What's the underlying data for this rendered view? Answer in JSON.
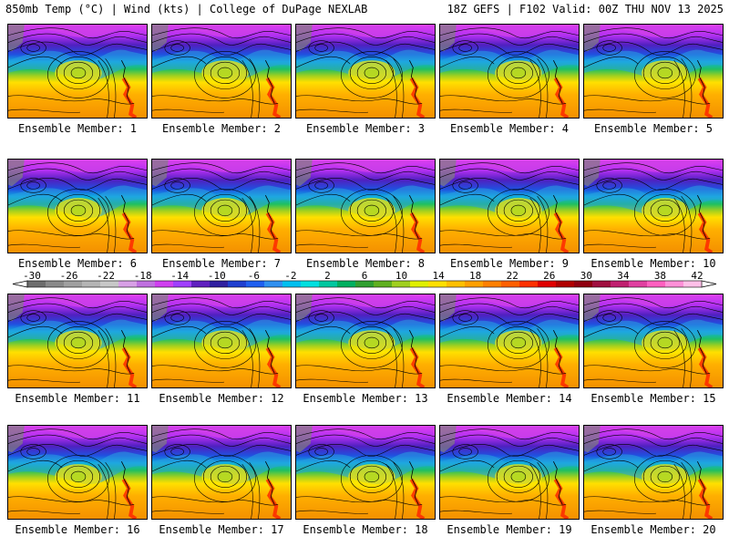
{
  "header": {
    "left_title": "850mb Temp (°C) | Wind (kts) | College of DuPage NEXLAB",
    "right_title": "18Z GEFS | F102 Valid: 00Z THU NOV 13 2025"
  },
  "members": [
    {
      "label": "Ensemble Member: 1"
    },
    {
      "label": "Ensemble Member: 2"
    },
    {
      "label": "Ensemble Member: 3"
    },
    {
      "label": "Ensemble Member: 4"
    },
    {
      "label": "Ensemble Member: 5"
    },
    {
      "label": "Ensemble Member: 6"
    },
    {
      "label": "Ensemble Member: 7"
    },
    {
      "label": "Ensemble Member: 8"
    },
    {
      "label": "Ensemble Member: 9"
    },
    {
      "label": "Ensemble Member: 10"
    },
    {
      "label": "Ensemble Member: 11"
    },
    {
      "label": "Ensemble Member: 12"
    },
    {
      "label": "Ensemble Member: 13"
    },
    {
      "label": "Ensemble Member: 14"
    },
    {
      "label": "Ensemble Member: 15"
    },
    {
      "label": "Ensemble Member: 16"
    },
    {
      "label": "Ensemble Member: 17"
    },
    {
      "label": "Ensemble Member: 18"
    },
    {
      "label": "Ensemble Member: 19"
    },
    {
      "label": "Ensemble Member: 20"
    }
  ],
  "colorbar": {
    "tick_labels": [
      "-30",
      "-26",
      "-22",
      "-18",
      "-14",
      "-10",
      "-6",
      "-2",
      "2",
      "6",
      "10",
      "14",
      "18",
      "22",
      "26",
      "30",
      "34",
      "38",
      "42"
    ],
    "colors": [
      "#6e6e6e",
      "#8a8a8a",
      "#a0a0a0",
      "#b4b4b4",
      "#c8c8c8",
      "#d8a0e6",
      "#c070e0",
      "#d040f0",
      "#a040ff",
      "#6020c0",
      "#3020a0",
      "#2040d0",
      "#2060f0",
      "#3090f0",
      "#00c0f0",
      "#00e0e0",
      "#00c8a0",
      "#00b060",
      "#30a030",
      "#60b020",
      "#a0d020",
      "#e0f000",
      "#ffe000",
      "#ffc000",
      "#ffa000",
      "#ff8000",
      "#ff6000",
      "#ff3000",
      "#e00000",
      "#b00000",
      "#900010",
      "#a01040",
      "#c02070",
      "#e040a0",
      "#ff60c0",
      "#ff90d8",
      "#ffc0e8"
    ]
  }
}
